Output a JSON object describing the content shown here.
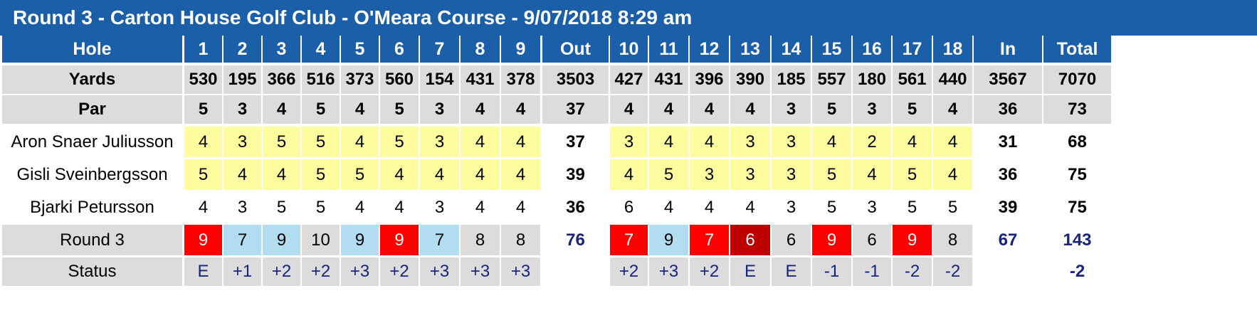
{
  "title": "Round 3 - Carton House Golf Club - O'Meara Course - 9/07/2018 8:29 am",
  "colors": {
    "title_bg": "#1a5fa8",
    "header_bg": "#1a5fa8",
    "gray": "#dcdcdc",
    "yellow": "#fdfda0",
    "white": "#ffffff",
    "red": "#ff0000",
    "dark_red": "#bf0000",
    "light_blue": "#b2dcf0",
    "navy_text": "#1a237e"
  },
  "header": [
    "Hole",
    "1",
    "2",
    "3",
    "4",
    "5",
    "6",
    "7",
    "8",
    "9",
    "Out",
    "10",
    "11",
    "12",
    "13",
    "14",
    "15",
    "16",
    "17",
    "18",
    "In",
    "Total"
  ],
  "rows": [
    {
      "type": "info",
      "label": "Yards",
      "values": [
        "530",
        "195",
        "366",
        "516",
        "373",
        "560",
        "154",
        "431",
        "378",
        "3503",
        "427",
        "431",
        "396",
        "390",
        "185",
        "557",
        "180",
        "561",
        "440",
        "3567",
        "7070"
      ]
    },
    {
      "type": "info",
      "label": "Par",
      "values": [
        "5",
        "3",
        "4",
        "5",
        "4",
        "5",
        "3",
        "4",
        "4",
        "37",
        "4",
        "4",
        "4",
        "4",
        "3",
        "5",
        "3",
        "5",
        "4",
        "36",
        "73"
      ]
    },
    {
      "type": "player",
      "label": "Aron Snaer Juliusson",
      "highlight": "yellow",
      "values": [
        "4",
        "3",
        "5",
        "5",
        "4",
        "5",
        "3",
        "4",
        "4",
        "37",
        "3",
        "4",
        "4",
        "3",
        "3",
        "4",
        "2",
        "4",
        "4",
        "31",
        "68"
      ]
    },
    {
      "type": "player",
      "label": "Gisli Sveinbergsson",
      "highlight": "yellow",
      "values": [
        "5",
        "4",
        "4",
        "5",
        "5",
        "4",
        "4",
        "4",
        "4",
        "39",
        "4",
        "5",
        "3",
        "3",
        "3",
        "5",
        "4",
        "5",
        "4",
        "36",
        "75"
      ]
    },
    {
      "type": "player",
      "label": "Bjarki Petursson",
      "highlight": "white",
      "values": [
        "4",
        "3",
        "5",
        "5",
        "4",
        "4",
        "3",
        "4",
        "4",
        "36",
        "6",
        "4",
        "4",
        "4",
        "3",
        "5",
        "3",
        "5",
        "5",
        "39",
        "75"
      ]
    },
    {
      "type": "round",
      "label": "Round 3",
      "values": [
        "9",
        "7",
        "9",
        "10",
        "9",
        "9",
        "7",
        "8",
        "8",
        "76",
        "7",
        "9",
        "7",
        "6",
        "6",
        "9",
        "6",
        "9",
        "8",
        "67",
        "143"
      ],
      "cell_colors": [
        "red",
        "light_blue",
        "light_blue",
        "gray",
        "light_blue",
        "red",
        "light_blue",
        "gray",
        "gray",
        "none",
        "red",
        "light_blue",
        "red",
        "dark_red",
        "gray",
        "red",
        "gray",
        "red",
        "gray",
        "none",
        "none"
      ]
    },
    {
      "type": "status",
      "label": "Status",
      "values": [
        "E",
        "+1",
        "+2",
        "+2",
        "+3",
        "+2",
        "+3",
        "+3",
        "+3",
        "",
        "+2",
        "+3",
        "+2",
        "E",
        "E",
        "-1",
        "-1",
        "-2",
        "-2",
        "",
        "-2"
      ]
    }
  ]
}
